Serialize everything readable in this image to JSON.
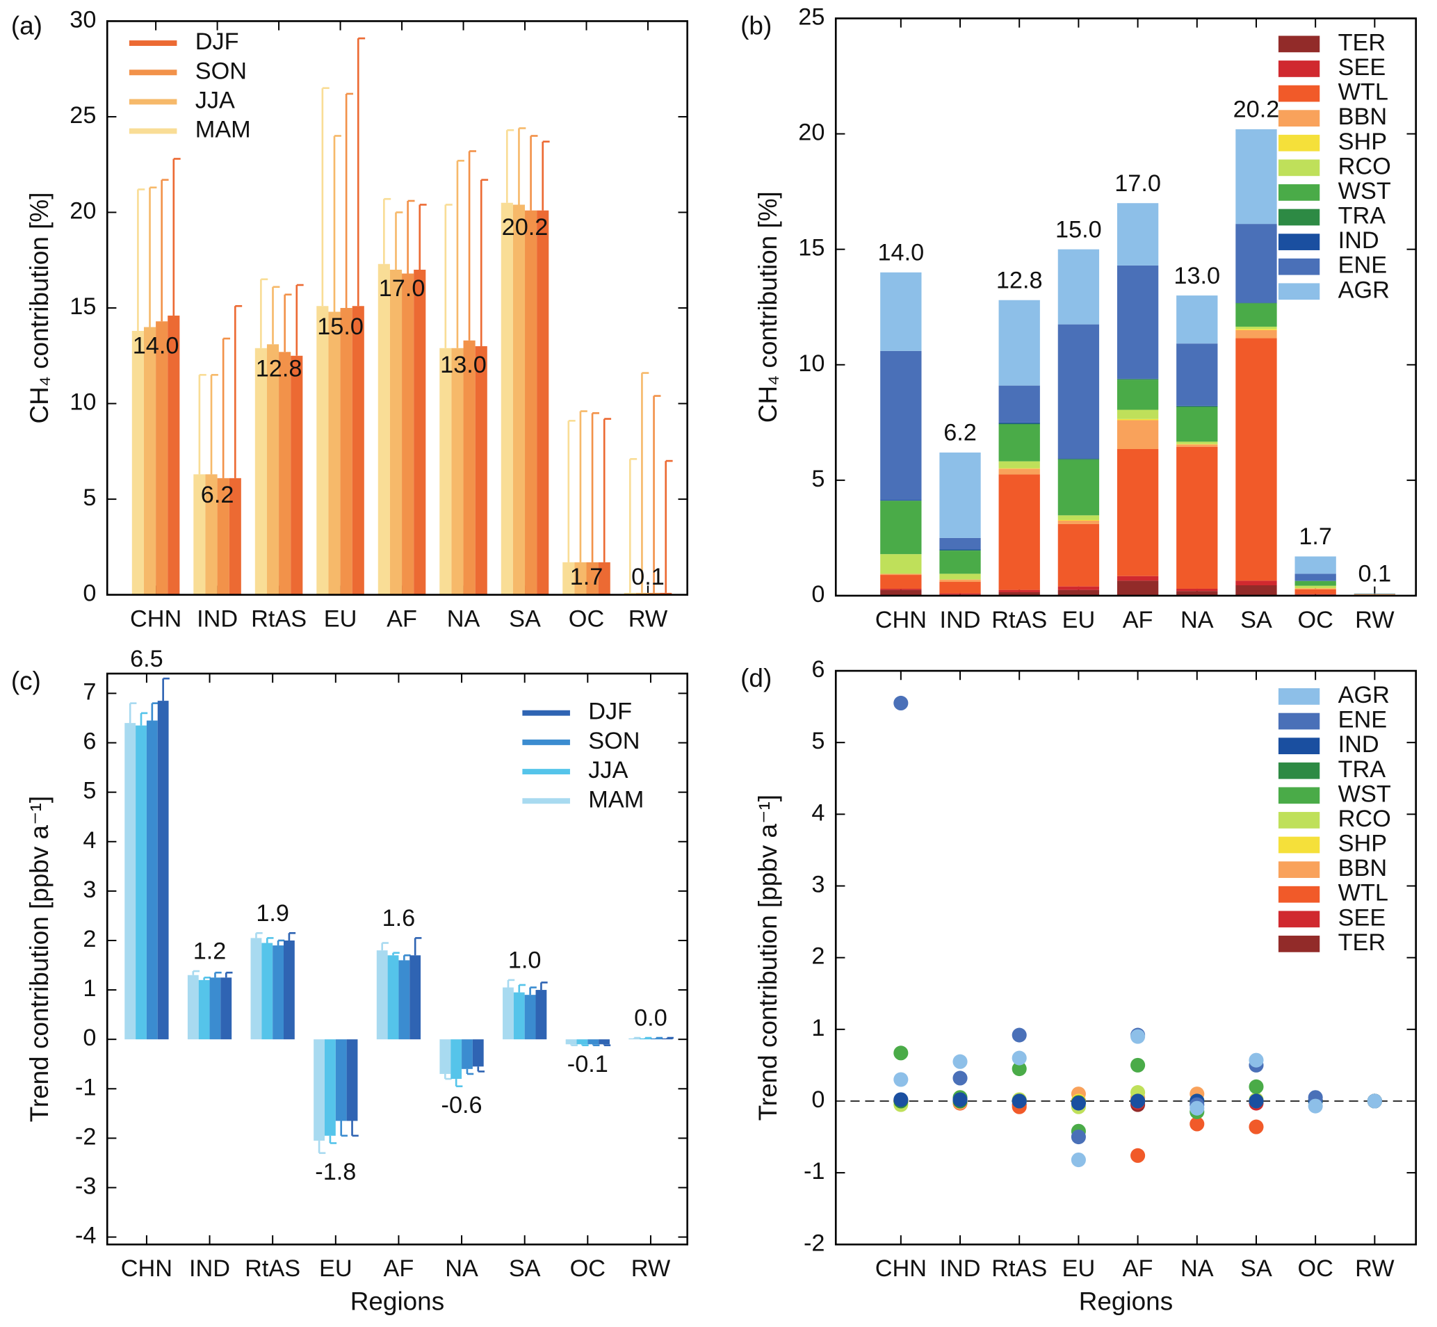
{
  "chart_data": [
    {
      "type": "grouped_bar_error",
      "panel_label": "(a)",
      "ylabel": "CH₄ contribution [%]",
      "categories": [
        "CHN",
        "IND",
        "RtAS",
        "EU",
        "AF",
        "NA",
        "SA",
        "OC",
        "RW"
      ],
      "ylim": [
        0,
        30
      ],
      "yticks": [
        0,
        5,
        10,
        15,
        20,
        25,
        30
      ],
      "legend": "upper left",
      "legend_reversed": true,
      "totals": [
        14.0,
        6.2,
        12.8,
        15.0,
        17.0,
        13.0,
        20.2,
        1.7,
        0.1
      ],
      "total_labels": [
        "14.0",
        "6.2",
        "12.8",
        "15.0",
        "17.0",
        "13.0",
        "20.2",
        "1.7",
        "0.1"
      ],
      "series": [
        {
          "name": "MAM",
          "color": "#f9dd96",
          "values": [
            13.8,
            6.3,
            12.9,
            15.1,
            17.3,
            12.9,
            20.5,
            1.7,
            0.1
          ],
          "errors": [
            7.4,
            5.2,
            3.6,
            11.4,
            3.4,
            7.5,
            3.8,
            7.4,
            7.0
          ]
        },
        {
          "name": "JJA",
          "color": "#f6b96a",
          "values": [
            14.0,
            6.3,
            13.1,
            14.8,
            17.0,
            12.9,
            20.4,
            1.7,
            0.1
          ],
          "errors": [
            7.3,
            5.2,
            3.0,
            9.2,
            3.0,
            9.8,
            4.0,
            7.9,
            11.5
          ]
        },
        {
          "name": "SON",
          "color": "#f2924a",
          "values": [
            14.3,
            6.1,
            12.7,
            15.0,
            16.8,
            13.3,
            20.1,
            1.7,
            0.1
          ],
          "errors": [
            7.4,
            7.3,
            3.0,
            11.2,
            3.8,
            9.9,
            3.9,
            7.8,
            10.3
          ]
        },
        {
          "name": "DJF",
          "color": "#ec6a33",
          "values": [
            14.6,
            6.1,
            12.5,
            15.1,
            17.0,
            13.0,
            20.1,
            1.7,
            0.1
          ],
          "errors": [
            8.2,
            9.0,
            3.7,
            14.0,
            3.4,
            8.7,
            3.6,
            7.5,
            6.9
          ]
        }
      ]
    },
    {
      "type": "stacked_bar",
      "panel_label": "(b)",
      "ylabel": "CH₄ contribution [%]",
      "categories": [
        "CHN",
        "IND",
        "RtAS",
        "EU",
        "AF",
        "NA",
        "SA",
        "OC",
        "RW"
      ],
      "ylim": [
        0,
        25
      ],
      "yticks": [
        0,
        5,
        10,
        15,
        20,
        25
      ],
      "legend": "upper right",
      "legend_reversed": false,
      "totals": [
        14.0,
        6.2,
        12.8,
        15.0,
        17.0,
        13.0,
        20.2,
        1.7,
        0.1
      ],
      "total_labels": [
        "14.0",
        "6.2",
        "12.8",
        "15.0",
        "17.0",
        "13.0",
        "20.2",
        "1.7",
        "0.1"
      ],
      "series": [
        {
          "name": "TER",
          "color": "#922b29",
          "values": [
            0.25,
            0.05,
            0.15,
            0.25,
            0.65,
            0.2,
            0.45,
            0.05,
            0.0
          ]
        },
        {
          "name": "SEE",
          "color": "#d0292f",
          "values": [
            0.05,
            0.05,
            0.1,
            0.15,
            0.2,
            0.1,
            0.2,
            0.02,
            0.0
          ]
        },
        {
          "name": "WTL",
          "color": "#f15a29",
          "values": [
            0.6,
            0.5,
            5.0,
            2.7,
            5.5,
            6.15,
            10.5,
            0.2,
            0.05
          ]
        },
        {
          "name": "BBN",
          "color": "#f9a25b",
          "values": [
            0.05,
            0.1,
            0.25,
            0.15,
            1.25,
            0.1,
            0.35,
            0.05,
            0.02
          ]
        },
        {
          "name": "SHP",
          "color": "#f5e03a",
          "values": [
            0.0,
            0.0,
            0.02,
            0.03,
            0.05,
            0.02,
            0.05,
            0.01,
            0.0
          ]
        },
        {
          "name": "RCO",
          "color": "#bfe05a",
          "values": [
            0.85,
            0.25,
            0.3,
            0.2,
            0.4,
            0.1,
            0.1,
            0.1,
            0.0
          ]
        },
        {
          "name": "WST",
          "color": "#4aab48",
          "values": [
            2.3,
            1.0,
            1.6,
            2.4,
            1.3,
            1.5,
            1.0,
            0.2,
            0.01
          ]
        },
        {
          "name": "TRA",
          "color": "#2d8a44",
          "values": [
            0.02,
            0.02,
            0.03,
            0.04,
            0.03,
            0.03,
            0.03,
            0.01,
            0.0
          ]
        },
        {
          "name": "IND",
          "color": "#1a4fa0",
          "values": [
            0.03,
            0.03,
            0.05,
            0.03,
            0.02,
            0.02,
            0.02,
            0.01,
            0.0
          ]
        },
        {
          "name": "ENE",
          "color": "#4a70b8",
          "values": [
            6.45,
            0.5,
            1.6,
            5.8,
            4.9,
            2.7,
            3.4,
            0.3,
            0.01
          ]
        },
        {
          "name": "AGR",
          "color": "#8dbfe8",
          "values": [
            3.4,
            3.7,
            3.7,
            3.25,
            2.7,
            2.08,
            4.1,
            0.75,
            0.01
          ]
        }
      ]
    },
    {
      "type": "grouped_bar_error",
      "panel_label": "(c)",
      "ylabel": "Trend contribution [ppbv a⁻¹]",
      "xlabel": "Regions",
      "categories": [
        "CHN",
        "IND",
        "RtAS",
        "EU",
        "AF",
        "NA",
        "SA",
        "OC",
        "RW"
      ],
      "ylim": [
        -4.15,
        7.4
      ],
      "yticks": [
        -4,
        -3,
        -2,
        -1,
        0,
        1,
        2,
        3,
        4,
        5,
        6,
        7
      ],
      "legend": "upper right",
      "legend_reversed": true,
      "totals": [
        6.5,
        1.2,
        1.9,
        -1.8,
        1.6,
        -0.6,
        1.0,
        -0.1,
        0.0
      ],
      "total_labels": [
        "6.5",
        "1.2",
        "1.9",
        "-1.8",
        "1.6",
        "-0.6",
        "1.0",
        "-0.1",
        "0.0"
      ],
      "series": [
        {
          "name": "MAM",
          "color": "#a8daf0",
          "values": [
            6.4,
            1.3,
            2.05,
            -2.05,
            1.8,
            -0.7,
            1.05,
            -0.1,
            0.02
          ],
          "errors": [
            0.4,
            0.08,
            0.1,
            0.25,
            0.15,
            0.1,
            0.15,
            0.02,
            0.01
          ]
        },
        {
          "name": "JJA",
          "color": "#55c4ea",
          "values": [
            6.35,
            1.2,
            1.95,
            -1.95,
            1.7,
            -0.8,
            0.95,
            -0.1,
            0.02
          ],
          "errors": [
            0.25,
            0.05,
            0.1,
            0.15,
            0.05,
            0.15,
            0.15,
            0.02,
            0.01
          ]
        },
        {
          "name": "SON",
          "color": "#3b8cd0",
          "values": [
            6.45,
            1.25,
            1.9,
            -1.65,
            1.6,
            -0.6,
            0.9,
            -0.1,
            0.02
          ],
          "errors": [
            0.35,
            0.1,
            0.1,
            0.3,
            0.1,
            0.1,
            0.15,
            0.02,
            0.01
          ]
        },
        {
          "name": "DJF",
          "color": "#2f64b3",
          "values": [
            6.85,
            1.25,
            2.0,
            -1.65,
            1.7,
            -0.55,
            1.0,
            -0.1,
            0.02
          ],
          "errors": [
            0.45,
            0.1,
            0.15,
            0.3,
            0.35,
            0.1,
            0.15,
            0.02,
            0.01
          ]
        }
      ]
    },
    {
      "type": "category_scatter",
      "panel_label": "(d)",
      "ylabel": "Trend contribution [ppbv a⁻¹]",
      "xlabel": "Regions",
      "categories": [
        "CHN",
        "IND",
        "RtAS",
        "EU",
        "AF",
        "NA",
        "SA",
        "OC",
        "RW"
      ],
      "ylim": [
        -2,
        6
      ],
      "yticks": [
        -2,
        -1,
        0,
        1,
        2,
        3,
        4,
        5,
        6
      ],
      "legend": "upper right",
      "legend_reversed": false,
      "zero_line": true,
      "series": [
        {
          "name": "AGR",
          "color": "#8dbfe8",
          "values": [
            0.3,
            0.55,
            0.6,
            -0.82,
            0.9,
            -0.1,
            0.57,
            -0.07,
            0.0
          ]
        },
        {
          "name": "ENE",
          "color": "#4a70b8",
          "values": [
            5.55,
            0.32,
            0.92,
            -0.5,
            0.92,
            -0.05,
            0.5,
            0.05,
            0.0
          ]
        },
        {
          "name": "IND",
          "color": "#1a4fa0",
          "values": [
            0.02,
            0.02,
            0.0,
            -0.03,
            0.0,
            0.0,
            0.0,
            0.0,
            0.0
          ]
        },
        {
          "name": "TRA",
          "color": "#2d8a44",
          "values": [
            0.0,
            0.0,
            0.0,
            -0.02,
            0.0,
            0.0,
            0.0,
            0.0,
            0.0
          ]
        },
        {
          "name": "WST",
          "color": "#4aab48",
          "values": [
            0.67,
            0.05,
            0.45,
            -0.42,
            0.5,
            -0.15,
            0.2,
            0.0,
            0.0
          ]
        },
        {
          "name": "RCO",
          "color": "#bfe05a",
          "values": [
            -0.05,
            0.03,
            0.02,
            -0.08,
            0.12,
            0.0,
            0.02,
            0.0,
            0.0
          ]
        },
        {
          "name": "SHP",
          "color": "#f5e03a",
          "values": [
            0.0,
            0.0,
            0.0,
            0.0,
            0.0,
            0.0,
            0.0,
            0.0,
            0.0
          ]
        },
        {
          "name": "BBN",
          "color": "#f9a25b",
          "values": [
            0.0,
            -0.02,
            0.0,
            0.1,
            0.05,
            0.1,
            0.0,
            0.0,
            0.0
          ]
        },
        {
          "name": "WTL",
          "color": "#f15a29",
          "values": [
            0.0,
            -0.03,
            -0.08,
            0.0,
            -0.76,
            -0.32,
            -0.36,
            0.0,
            0.0
          ]
        },
        {
          "name": "SEE",
          "color": "#d0292f",
          "values": [
            0.0,
            0.0,
            -0.05,
            0.0,
            -0.02,
            0.0,
            -0.03,
            0.0,
            0.0
          ]
        },
        {
          "name": "TER",
          "color": "#922b29",
          "values": [
            0.0,
            0.0,
            0.0,
            0.0,
            -0.05,
            0.0,
            -0.02,
            0.0,
            0.0
          ]
        }
      ]
    }
  ]
}
